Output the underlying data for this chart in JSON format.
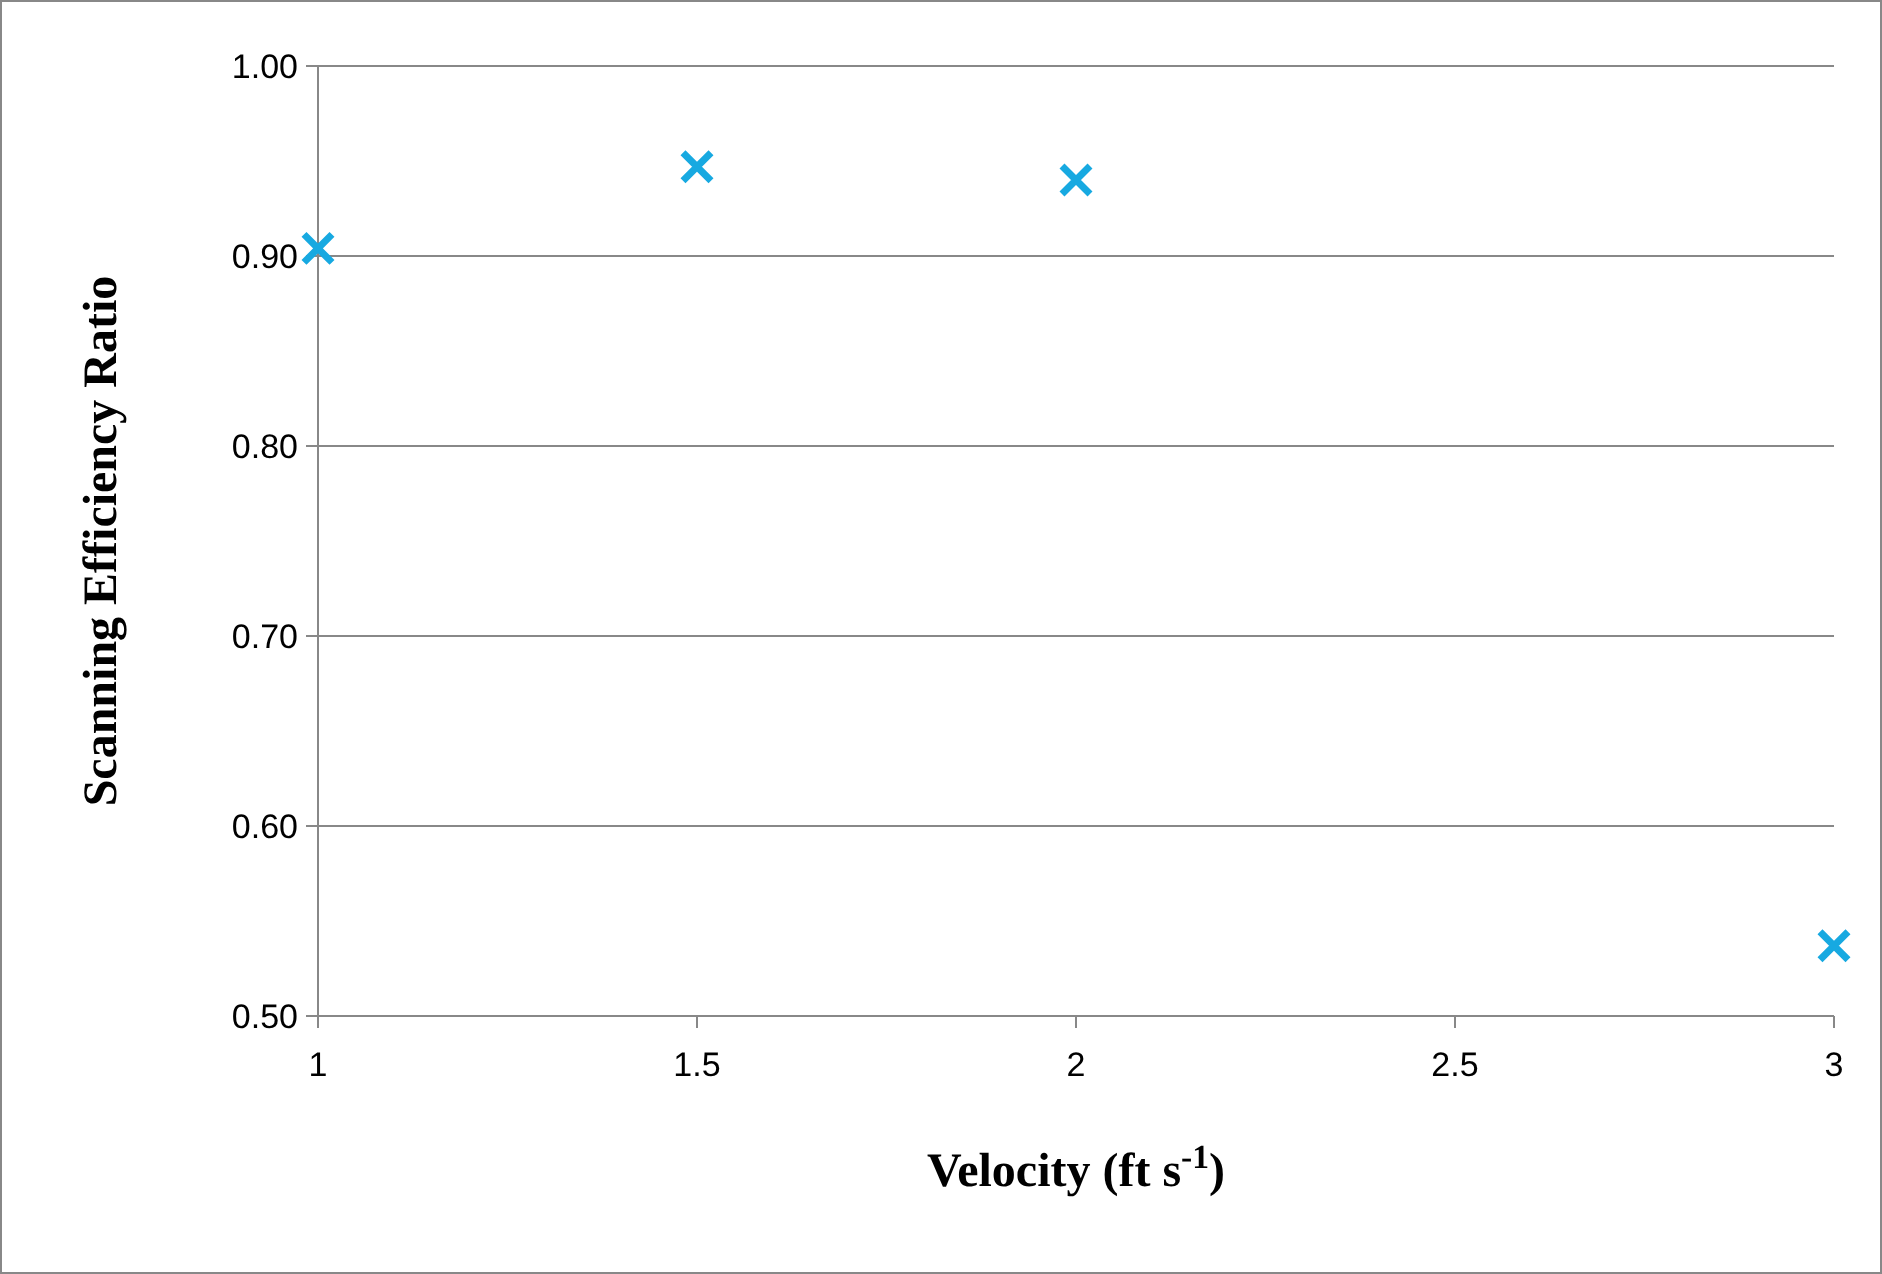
{
  "chart_data": {
    "type": "scatter",
    "xlabel": "Velocity (ft s$^{-1}$)",
    "ylabel": "Scanning Efficiency Ratio",
    "x": [
      1,
      1.5,
      2,
      3
    ],
    "series": [
      {
        "color": "#17a9e1",
        "values": [
          0.904,
          0.947,
          0.94,
          0.537
        ]
      }
    ],
    "xlim": [
      1,
      3
    ],
    "xticks": [
      1,
      1.5,
      2,
      2.5,
      3
    ],
    "ylim": [
      0.5,
      1.0
    ],
    "yticks": [
      {
        "value": 0.5,
        "label": "0.50"
      },
      {
        "value": 0.6,
        "label": "0.60"
      },
      {
        "value": 0.7,
        "label": "0.70"
      },
      {
        "value": 0.8,
        "label": "0.80"
      },
      {
        "value": 0.9,
        "label": "0.90"
      },
      {
        "value": 1.0,
        "label": "1.00"
      }
    ],
    "grid": "y",
    "marker": "cross"
  }
}
